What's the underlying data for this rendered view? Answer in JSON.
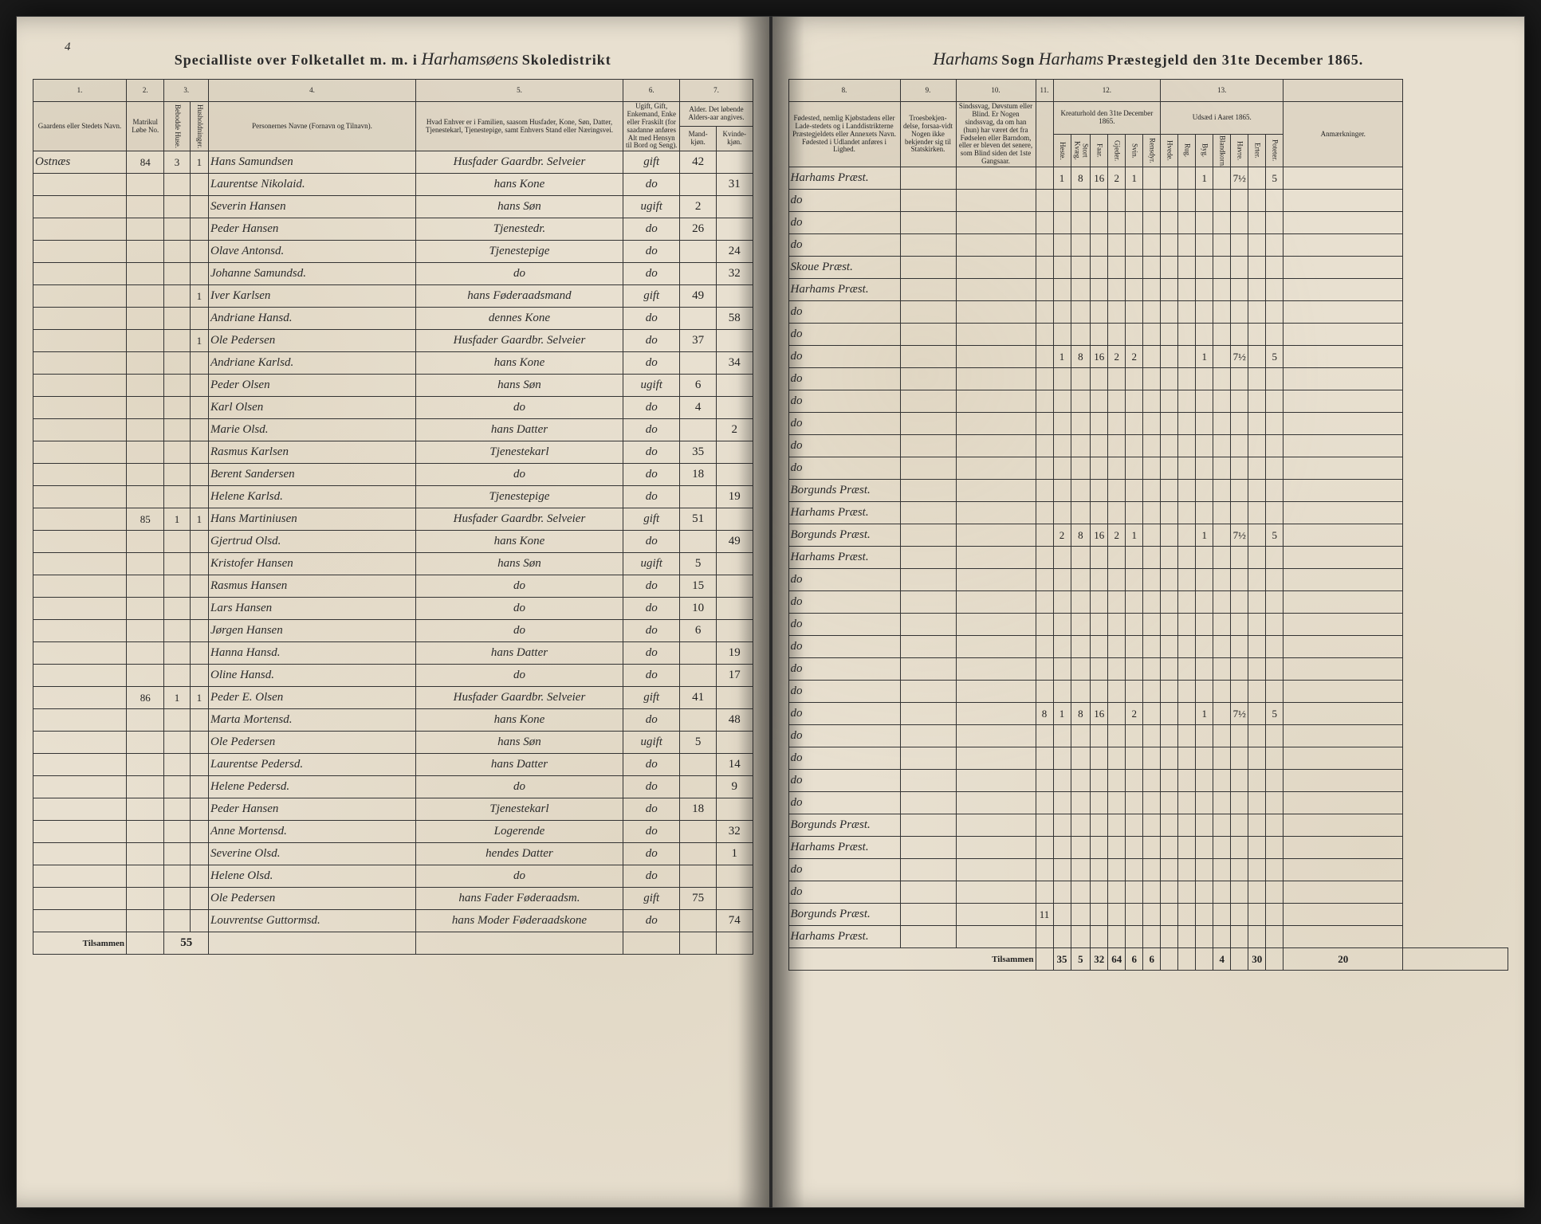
{
  "document": {
    "title_left_printed": "Specialliste over Folketallet m. m. i",
    "title_left_cursive": "Harhamsøens",
    "title_left_printed2": "Skoledistrikt",
    "title_right_cursive1": "Harhams",
    "title_right_printed1": "Sogn",
    "title_right_cursive2": "Harhams",
    "title_right_printed2": "Præstegjeld den 31te December",
    "title_right_year": "1865.",
    "page_number_left": "4",
    "page_number_right": "",
    "footer_label": "Tilsammen",
    "footer_left_value": "55",
    "footer_right_label": "Tilsammen",
    "footer_right_values": [
      "35",
      "5",
      "32",
      "64",
      "6",
      "6",
      "",
      "",
      "",
      "4",
      "",
      "30",
      "",
      "20"
    ]
  },
  "columns_left": {
    "1": "1.",
    "2": "2.",
    "3": "3.",
    "4": "4.",
    "5": "5.",
    "6": "6.",
    "7": "7.",
    "h1": "Gaardens eller Stedets Navn.",
    "h2": "Matrikul Løbe No.",
    "h3a": "Bebodde Huse.",
    "h3b": "Husholdninger.",
    "h4": "Personernes Navne (Fornavn og Tilnavn).",
    "h5": "Hvad Enhver er i Familien, saasom Husfader, Kone, Søn, Datter, Tjenestekarl, Tjenestepige, samt Enhvers Stand eller Næringsvei.",
    "h6": "Ugift, Gift, Enkemand, Enke eller Fraskilt (for saadanne anføres Alt med Hensyn til Bord og Seng).",
    "h7a": "Alder. Det løbende Alders-aar angives.",
    "h7b": "Mand-kjøn.",
    "h7c": "Kvinde-kjøn."
  },
  "columns_right": {
    "8": "8.",
    "9": "9.",
    "10": "10.",
    "11": "11.",
    "12": "12.",
    "13": "13.",
    "h8": "Fødested, nemlig Kjøbstadens eller Lade-stedets og i Landdistrikterne Præstegjeldets eller Annexets Navn. Fødested i Udlandet anføres i Lighed.",
    "h9": "Troesbekjen-delse, forsaa-vidt Nogen ikke bekjender sig til Statskirken.",
    "h10": "Sindssvag, Døvstum eller Blind. Er Nogen sindssvag, da om han (hun) har været det fra Fødselen eller Barndom, eller er bleven det senere, som Blind siden det 1ste Gangsaar.",
    "h11": "",
    "h12": "Kreaturhold den 31te December 1865.",
    "h12_sub": [
      "Heste.",
      "Stort Kvæg.",
      "Faar.",
      "Gjeder.",
      "Svin.",
      "Rensdyr."
    ],
    "h13": "Udsæd i Aaret 1865.",
    "h13_sub": [
      "Hvede.",
      "Rug.",
      "Byg.",
      "Blandkorn.",
      "Havre.",
      "Erter.",
      "Poteter."
    ],
    "h_remarks": "Anmærkninger."
  },
  "rows": [
    {
      "gaard": "Ostnæs",
      "lobe": "84",
      "hus": "3",
      "hh": "1",
      "navn": "Hans Samundsen",
      "stilling": "Husfader Gaardbr. Selveier",
      "stand": "gift",
      "alder_m": "42",
      "alder_k": "",
      "fodested": "Harhams Præst.",
      "kreatur": [
        "1",
        "8",
        "16",
        "2",
        "1",
        "",
        "",
        "",
        "1",
        "",
        "7½",
        "",
        "5"
      ]
    },
    {
      "gaard": "",
      "lobe": "",
      "hus": "",
      "hh": "",
      "navn": "Laurentse Nikolaid.",
      "stilling": "hans Kone",
      "stand": "do",
      "alder_m": "",
      "alder_k": "31",
      "fodested": "do",
      "kreatur": []
    },
    {
      "gaard": "",
      "lobe": "",
      "hus": "",
      "hh": "",
      "navn": "Severin Hansen",
      "stilling": "hans Søn",
      "stand": "ugift",
      "alder_m": "2",
      "alder_k": "",
      "fodested": "do",
      "kreatur": []
    },
    {
      "gaard": "",
      "lobe": "",
      "hus": "",
      "hh": "",
      "navn": "Peder Hansen",
      "stilling": "Tjenestedr.",
      "stand": "do",
      "alder_m": "26",
      "alder_k": "",
      "fodested": "do",
      "kreatur": []
    },
    {
      "gaard": "",
      "lobe": "",
      "hus": "",
      "hh": "",
      "navn": "Olave Antonsd.",
      "stilling": "Tjenestepige",
      "stand": "do",
      "alder_m": "",
      "alder_k": "24",
      "fodested": "Skoue Præst.",
      "kreatur": []
    },
    {
      "gaard": "",
      "lobe": "",
      "hus": "",
      "hh": "",
      "navn": "Johanne Samundsd.",
      "stilling": "do",
      "stand": "do",
      "alder_m": "",
      "alder_k": "32",
      "fodested": "Harhams Præst.",
      "kreatur": []
    },
    {
      "gaard": "",
      "lobe": "",
      "hus": "",
      "hh": "1",
      "navn": "Iver Karlsen",
      "stilling": "hans Føderaadsmand",
      "stand": "gift",
      "alder_m": "49",
      "alder_k": "",
      "fodested": "do",
      "kreatur": []
    },
    {
      "gaard": "",
      "lobe": "",
      "hus": "",
      "hh": "",
      "navn": "Andriane Hansd.",
      "stilling": "dennes Kone",
      "stand": "do",
      "alder_m": "",
      "alder_k": "58",
      "fodested": "do",
      "kreatur": []
    },
    {
      "gaard": "",
      "lobe": "",
      "hus": "",
      "hh": "1",
      "navn": "Ole Pedersen",
      "stilling": "Husfader Gaardbr. Selveier",
      "stand": "do",
      "alder_m": "37",
      "alder_k": "",
      "fodested": "do",
      "kreatur": [
        "1",
        "8",
        "16",
        "2",
        "2",
        "",
        "",
        "",
        "1",
        "",
        "7½",
        "",
        "5"
      ]
    },
    {
      "gaard": "",
      "lobe": "",
      "hus": "",
      "hh": "",
      "navn": "Andriane Karlsd.",
      "stilling": "hans Kone",
      "stand": "do",
      "alder_m": "",
      "alder_k": "34",
      "fodested": "do",
      "kreatur": []
    },
    {
      "gaard": "",
      "lobe": "",
      "hus": "",
      "hh": "",
      "navn": "Peder Olsen",
      "stilling": "hans Søn",
      "stand": "ugift",
      "alder_m": "6",
      "alder_k": "",
      "fodested": "do",
      "kreatur": []
    },
    {
      "gaard": "",
      "lobe": "",
      "hus": "",
      "hh": "",
      "navn": "Karl Olsen",
      "stilling": "do",
      "stand": "do",
      "alder_m": "4",
      "alder_k": "",
      "fodested": "do",
      "kreatur": []
    },
    {
      "gaard": "",
      "lobe": "",
      "hus": "",
      "hh": "",
      "navn": "Marie Olsd.",
      "stilling": "hans Datter",
      "stand": "do",
      "alder_m": "",
      "alder_k": "2",
      "fodested": "do",
      "kreatur": []
    },
    {
      "gaard": "",
      "lobe": "",
      "hus": "",
      "hh": "",
      "navn": "Rasmus Karlsen",
      "stilling": "Tjenestekarl",
      "stand": "do",
      "alder_m": "35",
      "alder_k": "",
      "fodested": "do",
      "kreatur": []
    },
    {
      "gaard": "",
      "lobe": "",
      "hus": "",
      "hh": "",
      "navn": "Berent Sandersen",
      "stilling": "do",
      "stand": "do",
      "alder_m": "18",
      "alder_k": "",
      "fodested": "Borgunds Præst.",
      "kreatur": []
    },
    {
      "gaard": "",
      "lobe": "",
      "hus": "",
      "hh": "",
      "navn": "Helene Karlsd.",
      "stilling": "Tjenestepige",
      "stand": "do",
      "alder_m": "",
      "alder_k": "19",
      "fodested": "Harhams Præst.",
      "kreatur": []
    },
    {
      "gaard": "",
      "lobe": "85",
      "hus": "1",
      "hh": "1",
      "navn": "Hans Martiniusen",
      "stilling": "Husfader Gaardbr. Selveier",
      "stand": "gift",
      "alder_m": "51",
      "alder_k": "",
      "fodested": "Borgunds Præst.",
      "kreatur": [
        "2",
        "8",
        "16",
        "2",
        "1",
        "",
        "",
        "",
        "1",
        "",
        "7½",
        "",
        "5"
      ]
    },
    {
      "gaard": "",
      "lobe": "",
      "hus": "",
      "hh": "",
      "navn": "Gjertrud Olsd.",
      "stilling": "hans Kone",
      "stand": "do",
      "alder_m": "",
      "alder_k": "49",
      "fodested": "Harhams Præst.",
      "kreatur": []
    },
    {
      "gaard": "",
      "lobe": "",
      "hus": "",
      "hh": "",
      "navn": "Kristofer Hansen",
      "stilling": "hans Søn",
      "stand": "ugift",
      "alder_m": "5",
      "alder_k": "",
      "fodested": "do",
      "kreatur": []
    },
    {
      "gaard": "",
      "lobe": "",
      "hus": "",
      "hh": "",
      "navn": "Rasmus Hansen",
      "stilling": "do",
      "stand": "do",
      "alder_m": "15",
      "alder_k": "",
      "fodested": "do",
      "kreatur": []
    },
    {
      "gaard": "",
      "lobe": "",
      "hus": "",
      "hh": "",
      "navn": "Lars Hansen",
      "stilling": "do",
      "stand": "do",
      "alder_m": "10",
      "alder_k": "",
      "fodested": "do",
      "kreatur": []
    },
    {
      "gaard": "",
      "lobe": "",
      "hus": "",
      "hh": "",
      "navn": "Jørgen Hansen",
      "stilling": "do",
      "stand": "do",
      "alder_m": "6",
      "alder_k": "",
      "fodested": "do",
      "kreatur": []
    },
    {
      "gaard": "",
      "lobe": "",
      "hus": "",
      "hh": "",
      "navn": "Hanna Hansd.",
      "stilling": "hans Datter",
      "stand": "do",
      "alder_m": "",
      "alder_k": "19",
      "fodested": "do",
      "kreatur": []
    },
    {
      "gaard": "",
      "lobe": "",
      "hus": "",
      "hh": "",
      "navn": "Oline Hansd.",
      "stilling": "do",
      "stand": "do",
      "alder_m": "",
      "alder_k": "17",
      "fodested": "do",
      "kreatur": []
    },
    {
      "gaard": "",
      "lobe": "86",
      "hus": "1",
      "hh": "1",
      "navn": "Peder E. Olsen",
      "stilling": "Husfader Gaardbr. Selveier",
      "stand": "gift",
      "alder_m": "41",
      "alder_k": "",
      "fodested": "do",
      "kreatur": [
        "1",
        "8",
        "16",
        "",
        "2",
        "",
        "",
        "",
        "1",
        "",
        "7½",
        "",
        "5"
      ],
      "note11": "8"
    },
    {
      "gaard": "",
      "lobe": "",
      "hus": "",
      "hh": "",
      "navn": "Marta Mortensd.",
      "stilling": "hans Kone",
      "stand": "do",
      "alder_m": "",
      "alder_k": "48",
      "fodested": "do",
      "kreatur": []
    },
    {
      "gaard": "",
      "lobe": "",
      "hus": "",
      "hh": "",
      "navn": "Ole Pedersen",
      "stilling": "hans Søn",
      "stand": "ugift",
      "alder_m": "5",
      "alder_k": "",
      "fodested": "do",
      "kreatur": []
    },
    {
      "gaard": "",
      "lobe": "",
      "hus": "",
      "hh": "",
      "navn": "Laurentse Pedersd.",
      "stilling": "hans Datter",
      "stand": "do",
      "alder_m": "",
      "alder_k": "14",
      "fodested": "do",
      "kreatur": []
    },
    {
      "gaard": "",
      "lobe": "",
      "hus": "",
      "hh": "",
      "navn": "Helene Pedersd.",
      "stilling": "do",
      "stand": "do",
      "alder_m": "",
      "alder_k": "9",
      "fodested": "do",
      "kreatur": []
    },
    {
      "gaard": "",
      "lobe": "",
      "hus": "",
      "hh": "",
      "navn": "Peder Hansen",
      "stilling": "Tjenestekarl",
      "stand": "do",
      "alder_m": "18",
      "alder_k": "",
      "fodested": "Borgunds Præst.",
      "kreatur": []
    },
    {
      "gaard": "",
      "lobe": "",
      "hus": "",
      "hh": "",
      "navn": "Anne Mortensd.",
      "stilling": "Logerende",
      "stand": "do",
      "alder_m": "",
      "alder_k": "32",
      "fodested": "Harhams Præst.",
      "kreatur": []
    },
    {
      "gaard": "",
      "lobe": "",
      "hus": "",
      "hh": "",
      "navn": "Severine Olsd.",
      "stilling": "hendes Datter",
      "stand": "do",
      "alder_m": "",
      "alder_k": "1",
      "fodested": "do",
      "kreatur": []
    },
    {
      "gaard": "",
      "lobe": "",
      "hus": "",
      "hh": "",
      "navn": "Helene Olsd.",
      "stilling": "do",
      "stand": "do",
      "alder_m": "",
      "alder_k": "",
      "fodested": "do",
      "kreatur": []
    },
    {
      "gaard": "",
      "lobe": "",
      "hus": "",
      "hh": "",
      "navn": "Ole Pedersen",
      "stilling": "hans Fader Føderaadsm.",
      "stand": "gift",
      "alder_m": "75",
      "alder_k": "",
      "fodested": "Borgunds Præst.",
      "kreatur": [],
      "note11": "11"
    },
    {
      "gaard": "",
      "lobe": "",
      "hus": "",
      "hh": "",
      "navn": "Louvrentse Guttormsd.",
      "stilling": "hans Moder Føderaadskone",
      "stand": "do",
      "alder_m": "",
      "alder_k": "74",
      "fodested": "Harhams Præst.",
      "kreatur": []
    }
  ],
  "style": {
    "paper_color": "#e8e0d0",
    "ink_color": "#2a2a2a",
    "border_color": "#333333",
    "cursive_font": "cursive"
  }
}
